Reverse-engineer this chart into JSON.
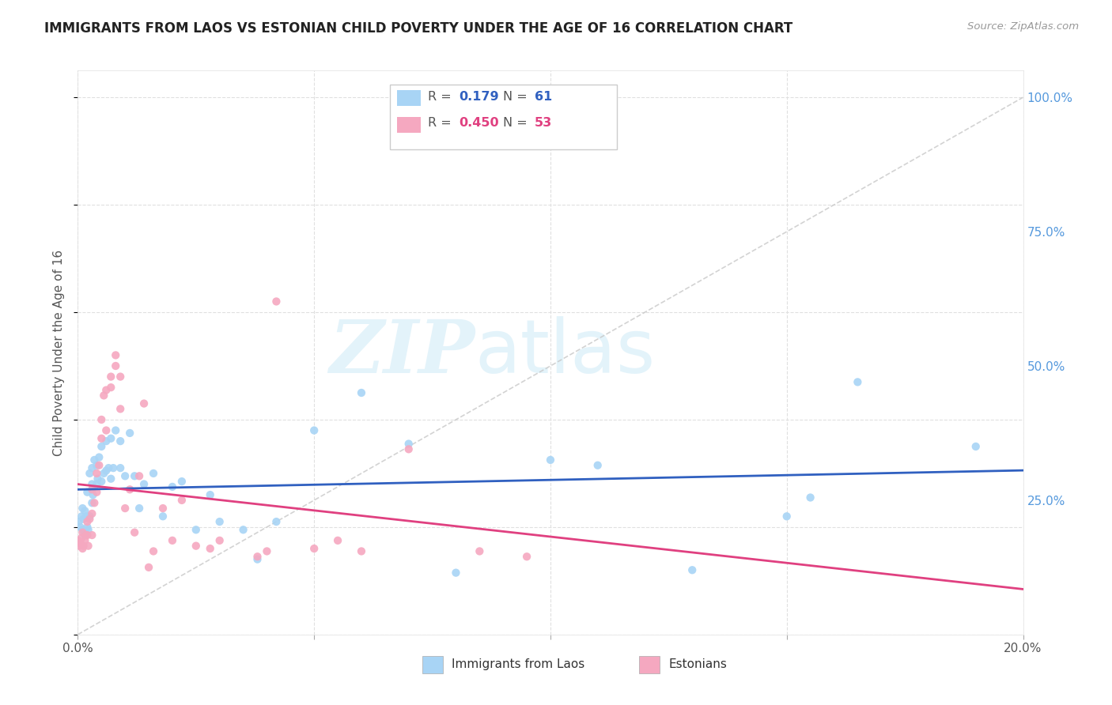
{
  "title": "IMMIGRANTS FROM LAOS VS ESTONIAN CHILD POVERTY UNDER THE AGE OF 16 CORRELATION CHART",
  "source": "Source: ZipAtlas.com",
  "ylabel": "Child Poverty Under the Age of 16",
  "legend_label_1": "Immigrants from Laos",
  "legend_label_2": "Estonians",
  "legend_R1": "R =  0.179",
  "legend_N1": "N =  61",
  "legend_R2": "R =  0.450",
  "legend_N2": "N =  53",
  "ytick_labels": [
    "25.0%",
    "50.0%",
    "75.0%",
    "100.0%"
  ],
  "ytick_values": [
    0.25,
    0.5,
    0.75,
    1.0
  ],
  "color_blue": "#A8D4F5",
  "color_pink": "#F5A8C0",
  "color_line_blue": "#3060C0",
  "color_line_pink": "#E04080",
  "color_diag": "#C8C8C8",
  "watermark_zip": "ZIP",
  "watermark_atlas": "atlas",
  "blue_x": [
    0.0002,
    0.0005,
    0.0008,
    0.001,
    0.001,
    0.0012,
    0.0015,
    0.0015,
    0.0018,
    0.002,
    0.002,
    0.0022,
    0.0025,
    0.0025,
    0.003,
    0.003,
    0.003,
    0.0032,
    0.0035,
    0.004,
    0.004,
    0.0042,
    0.0045,
    0.005,
    0.005,
    0.0055,
    0.006,
    0.006,
    0.0065,
    0.007,
    0.007,
    0.0075,
    0.008,
    0.009,
    0.009,
    0.01,
    0.011,
    0.012,
    0.013,
    0.014,
    0.016,
    0.018,
    0.02,
    0.022,
    0.025,
    0.028,
    0.03,
    0.035,
    0.038,
    0.042,
    0.05,
    0.06,
    0.07,
    0.08,
    0.1,
    0.11,
    0.13,
    0.15,
    0.165,
    0.19,
    0.155
  ],
  "blue_y": [
    0.21,
    0.2,
    0.22,
    0.235,
    0.195,
    0.215,
    0.23,
    0.185,
    0.22,
    0.265,
    0.2,
    0.195,
    0.3,
    0.22,
    0.31,
    0.28,
    0.245,
    0.26,
    0.325,
    0.315,
    0.28,
    0.29,
    0.33,
    0.35,
    0.285,
    0.3,
    0.36,
    0.305,
    0.31,
    0.365,
    0.29,
    0.31,
    0.38,
    0.31,
    0.36,
    0.295,
    0.375,
    0.295,
    0.235,
    0.28,
    0.3,
    0.22,
    0.275,
    0.285,
    0.195,
    0.26,
    0.21,
    0.195,
    0.14,
    0.21,
    0.38,
    0.45,
    0.355,
    0.115,
    0.325,
    0.315,
    0.12,
    0.22,
    0.47,
    0.35,
    0.255
  ],
  "pink_x": [
    0.0001,
    0.0003,
    0.0005,
    0.0008,
    0.001,
    0.001,
    0.0012,
    0.0015,
    0.0018,
    0.002,
    0.002,
    0.0022,
    0.0025,
    0.003,
    0.003,
    0.003,
    0.0035,
    0.004,
    0.004,
    0.0045,
    0.005,
    0.005,
    0.0055,
    0.006,
    0.006,
    0.007,
    0.007,
    0.008,
    0.008,
    0.009,
    0.009,
    0.01,
    0.011,
    0.012,
    0.013,
    0.014,
    0.015,
    0.016,
    0.018,
    0.02,
    0.022,
    0.025,
    0.028,
    0.03,
    0.038,
    0.04,
    0.042,
    0.05,
    0.055,
    0.06,
    0.07,
    0.085,
    0.095
  ],
  "pink_y": [
    0.175,
    0.165,
    0.17,
    0.18,
    0.19,
    0.16,
    0.165,
    0.175,
    0.185,
    0.21,
    0.185,
    0.165,
    0.215,
    0.27,
    0.225,
    0.185,
    0.245,
    0.3,
    0.265,
    0.315,
    0.4,
    0.365,
    0.445,
    0.455,
    0.38,
    0.48,
    0.46,
    0.52,
    0.5,
    0.48,
    0.42,
    0.235,
    0.27,
    0.19,
    0.295,
    0.43,
    0.125,
    0.155,
    0.235,
    0.175,
    0.25,
    0.165,
    0.16,
    0.175,
    0.145,
    0.155,
    0.62,
    0.16,
    0.175,
    0.155,
    0.345,
    0.155,
    0.145
  ]
}
